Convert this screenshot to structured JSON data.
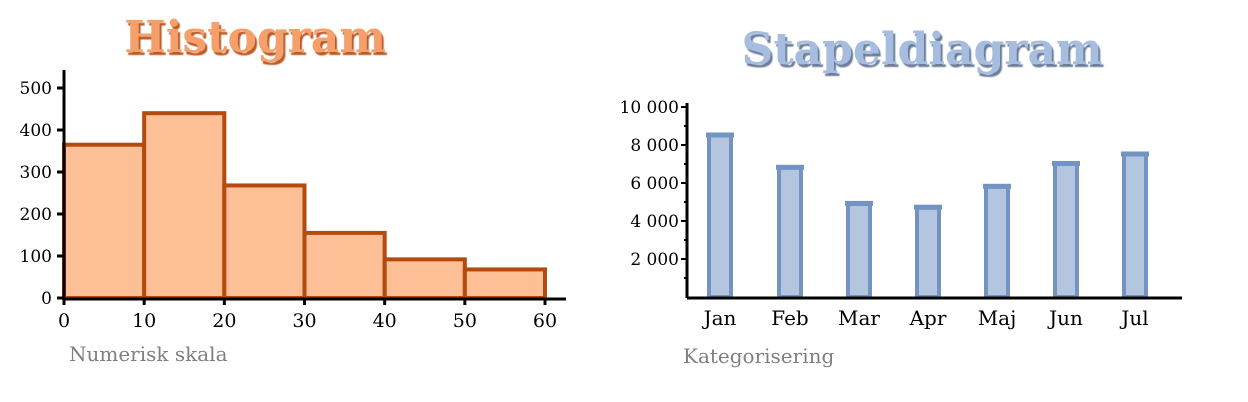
{
  "chart_data": [
    {
      "type": "histogram",
      "title": "Histogram",
      "xlabel": "Numerisk skala",
      "ylabel": "",
      "xlim": [
        0,
        60
      ],
      "ylim": [
        0,
        550
      ],
      "x_ticks": [
        "0",
        "10",
        "20",
        "30",
        "40",
        "50",
        "60"
      ],
      "y_ticks": [
        "0",
        "100",
        "200",
        "300",
        "400",
        "500"
      ],
      "bins": [
        {
          "start": 0,
          "end": 10,
          "value": 365
        },
        {
          "start": 10,
          "end": 20,
          "value": 440
        },
        {
          "start": 20,
          "end": 30,
          "value": 268
        },
        {
          "start": 30,
          "end": 40,
          "value": 155
        },
        {
          "start": 40,
          "end": 50,
          "value": 92
        },
        {
          "start": 50,
          "end": 60,
          "value": 68
        }
      ],
      "grid": false,
      "colors": {
        "fill": "#fdbf95",
        "stroke": "#b34a0e",
        "title": "#f5a06a",
        "title_shadow": "#b34a0e"
      }
    },
    {
      "type": "bar",
      "title": "Stapeldiagram",
      "xlabel": "Kategorisering",
      "ylabel": "",
      "ylim": [
        0,
        10000
      ],
      "y_ticks": [
        "2 000",
        "4 000",
        "6 000",
        "8 000",
        "10 000"
      ],
      "categories": [
        "Jan",
        "Feb",
        "Mar",
        "Apr",
        "Maj",
        "Jun",
        "Jul"
      ],
      "values": [
        8500,
        6800,
        4900,
        4700,
        5800,
        7000,
        7500
      ],
      "grid": false,
      "colors": {
        "fill": "#b4c5e0",
        "stroke": "#7393c3",
        "title": "#a6bde0",
        "title_shadow": "#5b6f8f"
      }
    }
  ]
}
